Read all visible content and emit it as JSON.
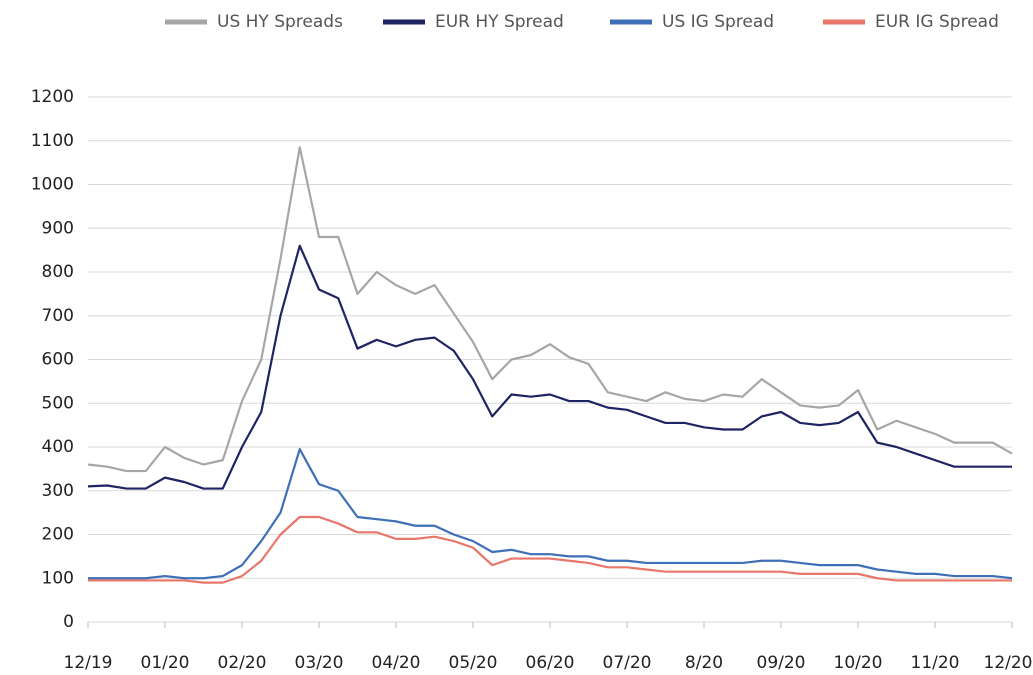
{
  "chart_data": {
    "type": "line",
    "x": [
      0,
      0.25,
      0.5,
      0.75,
      1,
      1.25,
      1.5,
      1.75,
      2,
      2.25,
      2.5,
      2.75,
      3,
      3.25,
      3.5,
      3.75,
      4,
      4.25,
      4.5,
      4.75,
      5,
      5.25,
      5.5,
      5.75,
      6,
      6.25,
      6.5,
      6.75,
      7,
      7.25,
      7.5,
      7.75,
      8,
      8.25,
      8.5,
      8.75,
      9,
      9.25,
      9.5,
      9.75,
      10,
      10.25,
      10.5,
      10.75,
      11,
      11.25,
      11.5,
      11.75,
      12
    ],
    "series": [
      {
        "name": "US HY Spreads",
        "color": "#a6a6a6",
        "values": [
          360,
          355,
          345,
          345,
          400,
          375,
          360,
          370,
          505,
          600,
          830,
          1085,
          880,
          880,
          750,
          800,
          770,
          750,
          770,
          705,
          640,
          555,
          600,
          610,
          635,
          605,
          590,
          525,
          515,
          505,
          525,
          510,
          505,
          520,
          515,
          555,
          525,
          495,
          490,
          495,
          530,
          440,
          460,
          445,
          430,
          410,
          410,
          410,
          385
        ]
      },
      {
        "name": "EUR HY Spread",
        "color": "#1f2463",
        "values": [
          310,
          312,
          305,
          305,
          330,
          320,
          305,
          305,
          400,
          480,
          700,
          860,
          760,
          740,
          625,
          645,
          630,
          645,
          650,
          620,
          555,
          470,
          520,
          515,
          520,
          505,
          505,
          490,
          485,
          470,
          455,
          455,
          445,
          440,
          440,
          470,
          480,
          455,
          450,
          455,
          480,
          410,
          400,
          385,
          370,
          355,
          355,
          355,
          355
        ]
      },
      {
        "name": "US IG Spread",
        "color": "#3f6fb6",
        "values": [
          100,
          100,
          100,
          100,
          105,
          100,
          100,
          105,
          130,
          185,
          250,
          395,
          315,
          300,
          240,
          235,
          230,
          220,
          220,
          200,
          185,
          160,
          165,
          155,
          155,
          150,
          150,
          140,
          140,
          135,
          135,
          135,
          135,
          135,
          135,
          140,
          140,
          135,
          130,
          130,
          130,
          120,
          115,
          110,
          110,
          105,
          105,
          105,
          100
        ]
      },
      {
        "name": "EUR IG Spread",
        "color": "#e8776a",
        "values": [
          95,
          95,
          95,
          95,
          95,
          95,
          90,
          90,
          105,
          140,
          200,
          240,
          240,
          225,
          205,
          205,
          190,
          190,
          195,
          185,
          170,
          130,
          145,
          145,
          145,
          140,
          135,
          125,
          125,
          120,
          115,
          115,
          115,
          115,
          115,
          115,
          115,
          110,
          110,
          110,
          110,
          100,
          95,
          95,
          95,
          95,
          95,
          95,
          95
        ]
      }
    ],
    "xlim": [
      0,
      12
    ],
    "xticks": [
      {
        "value": 0,
        "label": "12/19"
      },
      {
        "value": 1,
        "label": "01/20"
      },
      {
        "value": 2,
        "label": "02/20"
      },
      {
        "value": 3,
        "label": "03/20"
      },
      {
        "value": 4,
        "label": "04/20"
      },
      {
        "value": 5,
        "label": "05/20"
      },
      {
        "value": 6,
        "label": "06/20"
      },
      {
        "value": 7,
        "label": "07/20"
      },
      {
        "value": 8,
        "label": "8/20"
      },
      {
        "value": 9,
        "label": "09/20"
      },
      {
        "value": 10,
        "label": "10/20"
      },
      {
        "value": 11,
        "label": "11/20"
      },
      {
        "value": 12,
        "label": "12/20"
      }
    ],
    "ylim": [
      0,
      1200
    ],
    "yticks": [
      0,
      100,
      200,
      300,
      400,
      500,
      600,
      700,
      800,
      900,
      1000,
      1100,
      1200
    ],
    "grid": true,
    "legend": "top"
  }
}
